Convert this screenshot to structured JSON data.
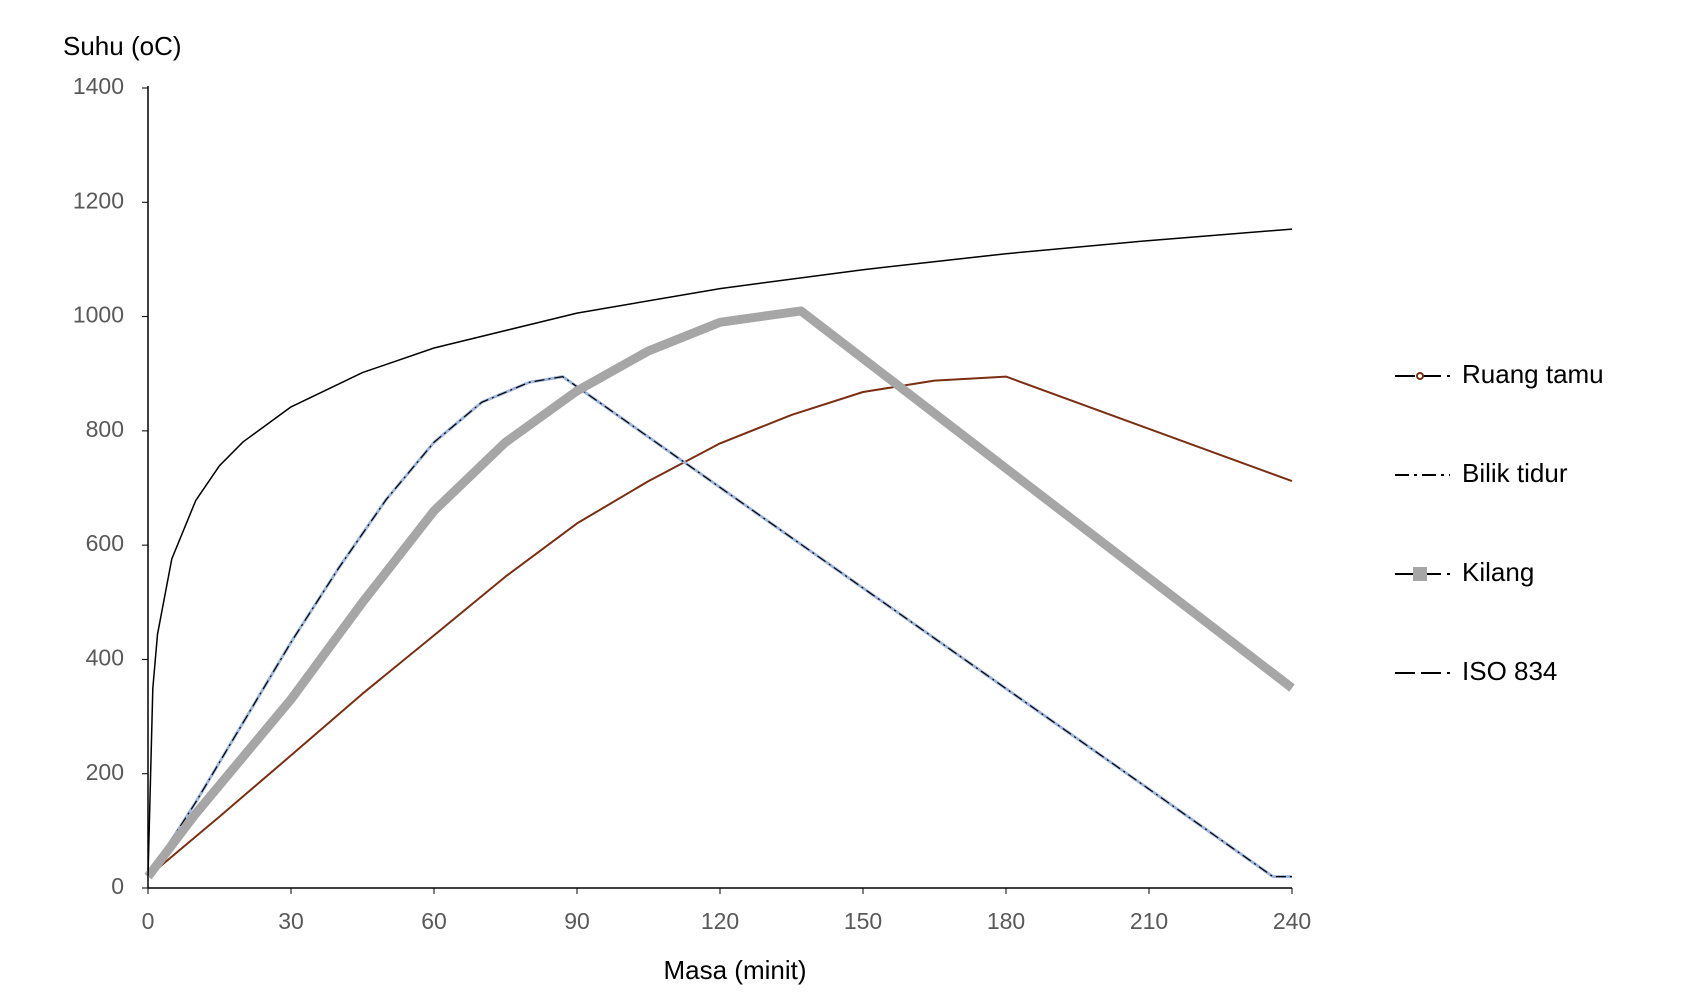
{
  "chart_data": {
    "type": "line",
    "y_label": "Suhu (oC)",
    "x_label": "Masa  (minit)",
    "xlim": [
      0,
      240
    ],
    "xticks": [
      0,
      30,
      60,
      90,
      120,
      150,
      180,
      210,
      240
    ],
    "ylim": [
      0,
      1400
    ],
    "yticks": [
      0,
      200,
      400,
      600,
      800,
      1000,
      1200,
      1400
    ],
    "legend": "right",
    "series": [
      {
        "name": "Ruang tamu",
        "color": "#7a2e12",
        "line_width": 2,
        "marker": "circle",
        "x": [
          0,
          15,
          30,
          45,
          60,
          75,
          90,
          105,
          120,
          135,
          150,
          165,
          180,
          240
        ],
        "values": [
          20,
          125,
          232,
          340,
          442,
          545,
          638,
          712,
          778,
          828,
          868,
          888,
          895,
          712
        ]
      },
      {
        "name": "Bilik tidur",
        "color": "#9fb6dd",
        "line_width": 3,
        "marker": "dashdot",
        "x": [
          0,
          10,
          20,
          30,
          40,
          50,
          60,
          70,
          80,
          87,
          120,
          150,
          180,
          210,
          236,
          240
        ],
        "values": [
          20,
          150,
          290,
          430,
          560,
          680,
          780,
          850,
          885,
          895,
          701,
          525,
          349,
          173,
          20,
          20
        ]
      },
      {
        "name": "Kilang",
        "color": "#a6a6a6",
        "line_width": 9,
        "marker": "square",
        "x": [
          0,
          10,
          20,
          30,
          45,
          60,
          75,
          90,
          105,
          120,
          137,
          240
        ],
        "values": [
          20,
          130,
          230,
          330,
          500,
          660,
          780,
          870,
          940,
          990,
          1010,
          350
        ]
      },
      {
        "name": "ISO 834",
        "color": "#000000",
        "line_width": 1.5,
        "marker": null,
        "x": [
          0,
          1,
          2,
          5,
          10,
          15,
          20,
          30,
          45,
          60,
          90,
          120,
          150,
          180,
          210,
          240
        ],
        "values": [
          20,
          349,
          444,
          576,
          678,
          739,
          781,
          842,
          902,
          945,
          1006,
          1049,
          1082,
          1110,
          1133,
          1153
        ]
      }
    ]
  }
}
